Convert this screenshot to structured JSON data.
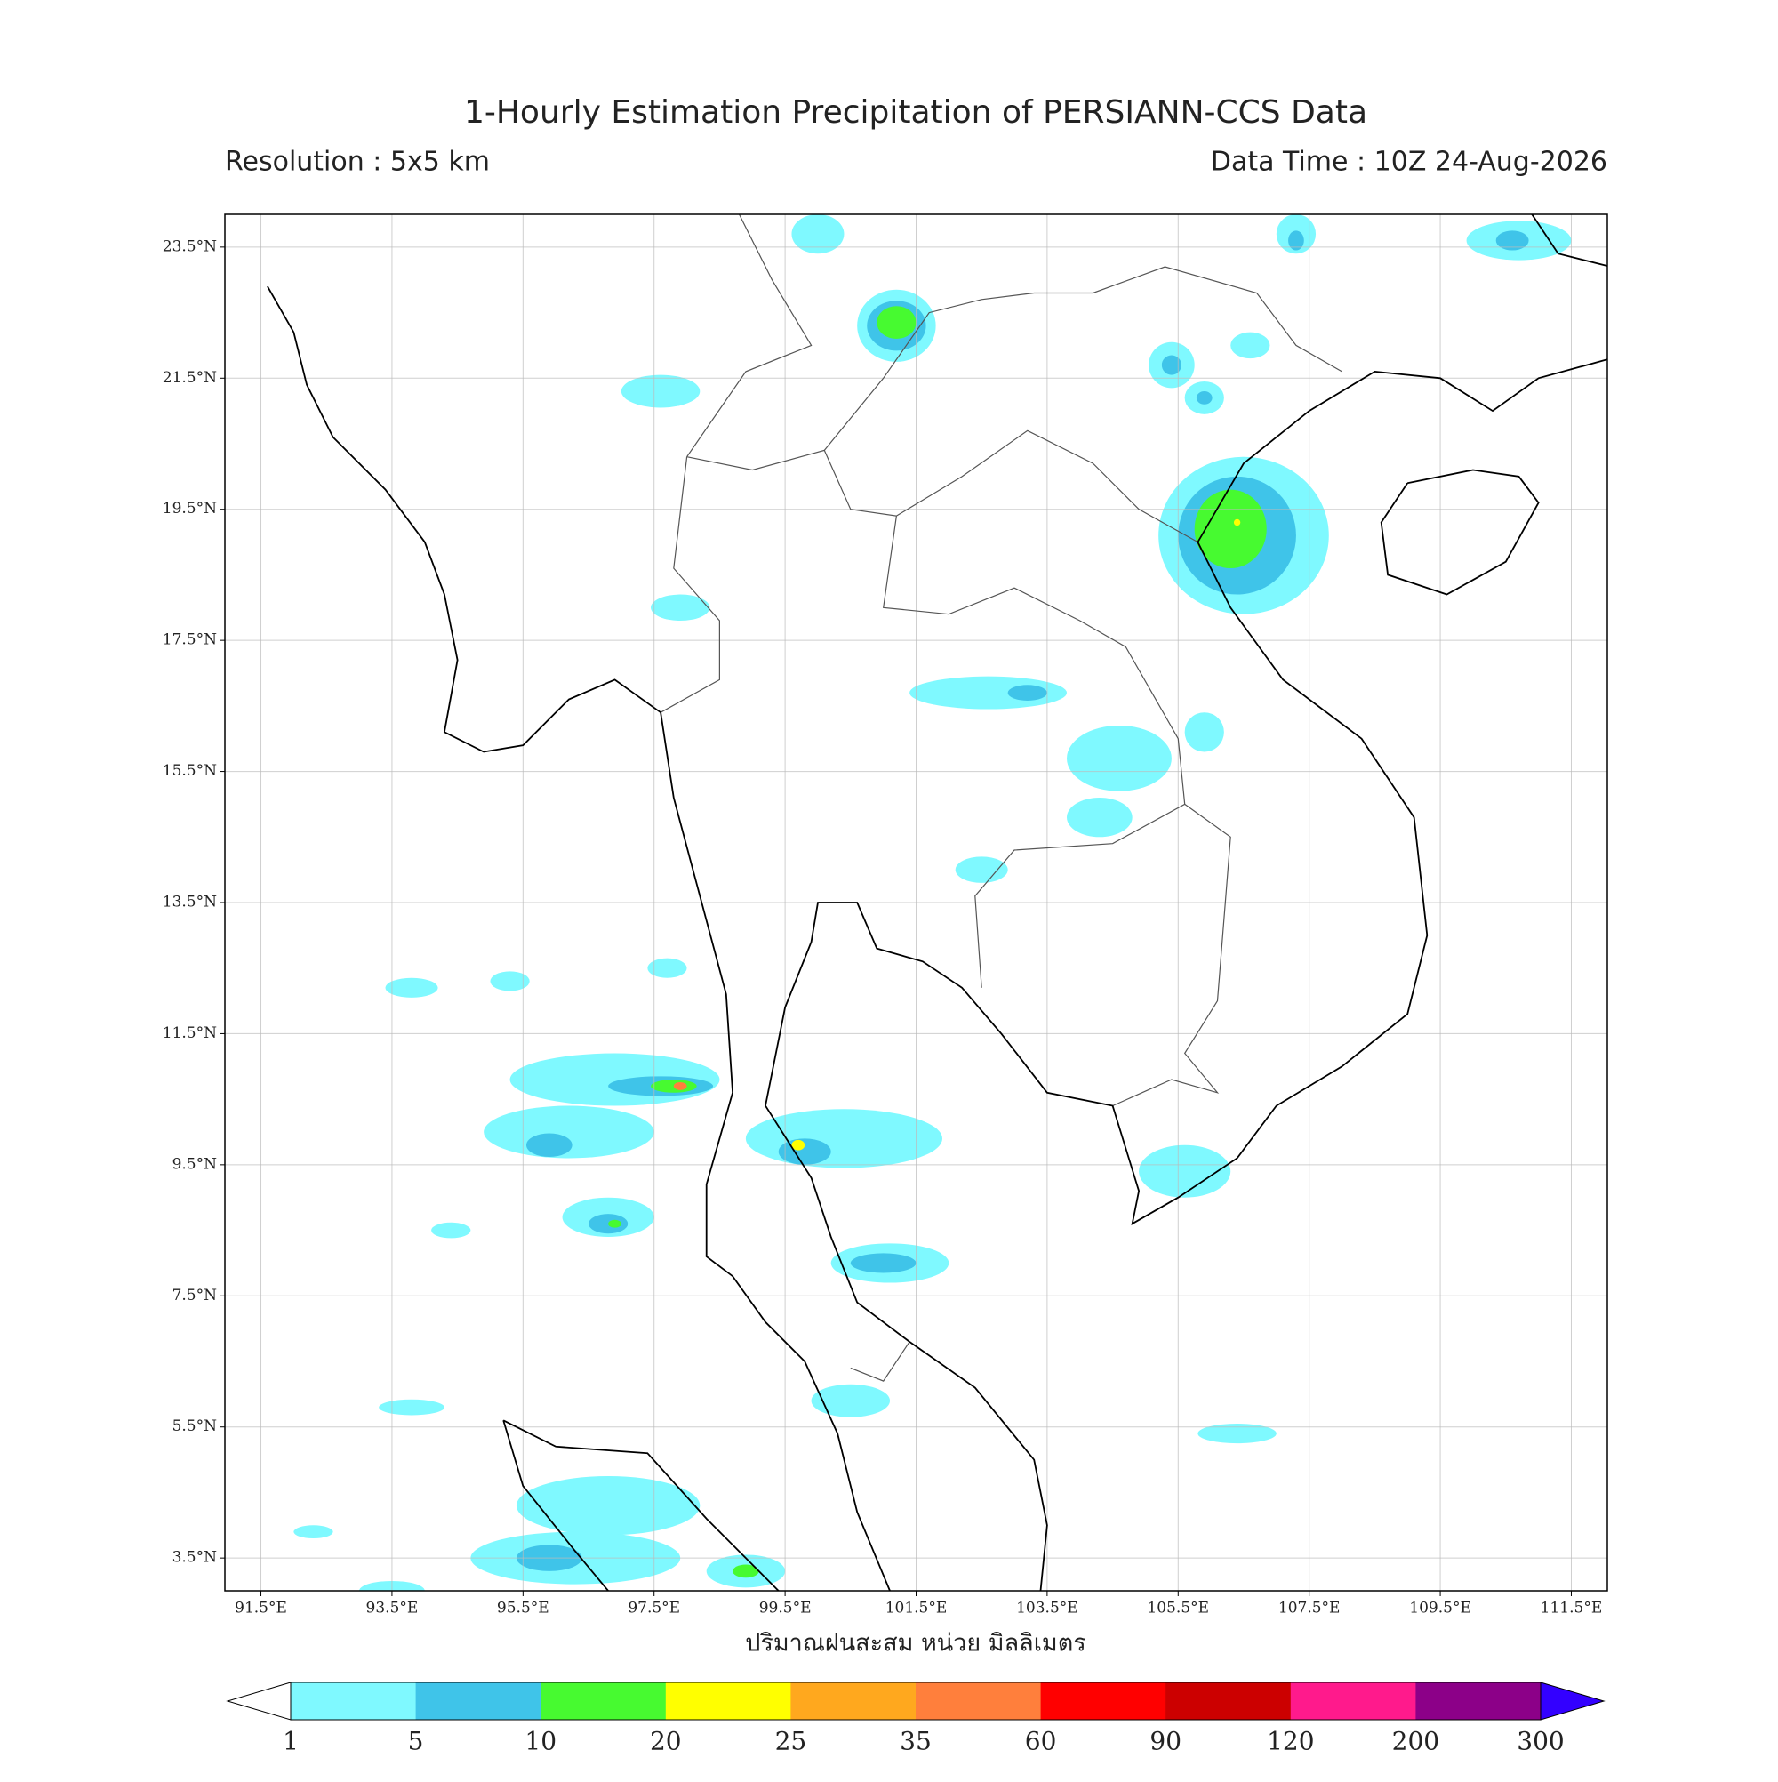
{
  "title": "1-Hourly Estimation Precipitation of PERSIANN-CCS Data",
  "resolution": "Resolution : 5x5 km",
  "data_time": "Data Time : 10Z 24-Aug-2026",
  "map": {
    "lonlim": [
      90.95,
      112.05
    ],
    "latlim": [
      3,
      24
    ],
    "lon_ticks": [
      {
        "value": 91.5,
        "label": "91.5°E"
      },
      {
        "value": 93.5,
        "label": "93.5°E"
      },
      {
        "value": 95.5,
        "label": "95.5°E"
      },
      {
        "value": 97.5,
        "label": "97.5°E"
      },
      {
        "value": 99.5,
        "label": "99.5°E"
      },
      {
        "value": 101.5,
        "label": "101.5°E"
      },
      {
        "value": 103.5,
        "label": "103.5°E"
      },
      {
        "value": 105.5,
        "label": "105.5°E"
      },
      {
        "value": 107.5,
        "label": "107.5°E"
      },
      {
        "value": 109.5,
        "label": "109.5°E"
      },
      {
        "value": 111.5,
        "label": "111.5°E"
      }
    ],
    "lat_ticks": [
      {
        "value": 23.5,
        "label": "23.5°N"
      },
      {
        "value": 21.5,
        "label": "21.5°N"
      },
      {
        "value": 19.5,
        "label": "19.5°N"
      },
      {
        "value": 17.5,
        "label": "17.5°N"
      },
      {
        "value": 15.5,
        "label": "15.5°N"
      },
      {
        "value": 13.5,
        "label": "13.5°N"
      },
      {
        "value": 11.5,
        "label": "11.5°N"
      },
      {
        "value": 9.5,
        "label": "9.5°N"
      },
      {
        "value": 7.5,
        "label": "7.5°N"
      },
      {
        "value": 5.5,
        "label": "5.5°N"
      },
      {
        "value": 3.5,
        "label": "3.5°N"
      }
    ]
  },
  "colorbar": {
    "label": "ปริมาณฝนสะสม หน่วย มิลลิเมตร",
    "levels": [
      1,
      5,
      10,
      20,
      25,
      35,
      60,
      90,
      120,
      200,
      300
    ],
    "colors": [
      "#7ff9ff",
      "#3fc4e9",
      "#47fa30",
      "#ffff00",
      "#ffa81e",
      "#ff7f3c",
      "#ff0000",
      "#cc0000",
      "#ff1a8c",
      "#8c0088"
    ],
    "under_color": "#ffffff",
    "over_color": "#3300ff"
  }
}
